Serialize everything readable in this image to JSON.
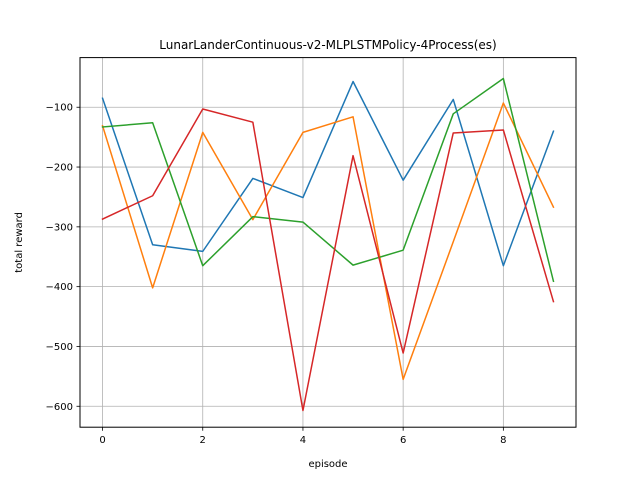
{
  "chart_data": {
    "type": "line",
    "title": "LunarLanderContinuous-v2-MLPLSTMPolicy-4Process(es)",
    "xlabel": "episode",
    "ylabel": "total reward",
    "x": [
      0,
      1,
      2,
      3,
      4,
      5,
      6,
      7,
      8,
      9
    ],
    "xlim": [
      -0.45,
      9.45
    ],
    "ylim": [
      -635,
      -17
    ],
    "xticks": [
      0,
      2,
      4,
      6,
      8
    ],
    "yticks": [
      -600,
      -500,
      -400,
      -300,
      -200,
      -100
    ],
    "xtick_labels": [
      "0",
      "2",
      "4",
      "6",
      "8"
    ],
    "ytick_labels": [
      "−600",
      "−500",
      "−400",
      "−300",
      "−200",
      "−100"
    ],
    "grid": true,
    "legend": "none",
    "series": [
      {
        "color": "#1f77b4",
        "values": [
          -85,
          -330,
          -341,
          -219,
          -251,
          -57,
          -222,
          -87,
          -365,
          -140
        ]
      },
      {
        "color": "#ff7f0e",
        "values": [
          -131,
          -402,
          -142,
          -288,
          -142,
          -116,
          -555,
          -325,
          -93,
          -267
        ]
      },
      {
        "color": "#2ca02c",
        "values": [
          -133,
          -126,
          -365,
          -283,
          -292,
          -364,
          -339,
          -111,
          -52,
          -391
        ]
      },
      {
        "color": "#d62728",
        "values": [
          -287,
          -248,
          -103,
          -125,
          -607,
          -181,
          -511,
          -143,
          -138,
          -425
        ]
      }
    ]
  }
}
